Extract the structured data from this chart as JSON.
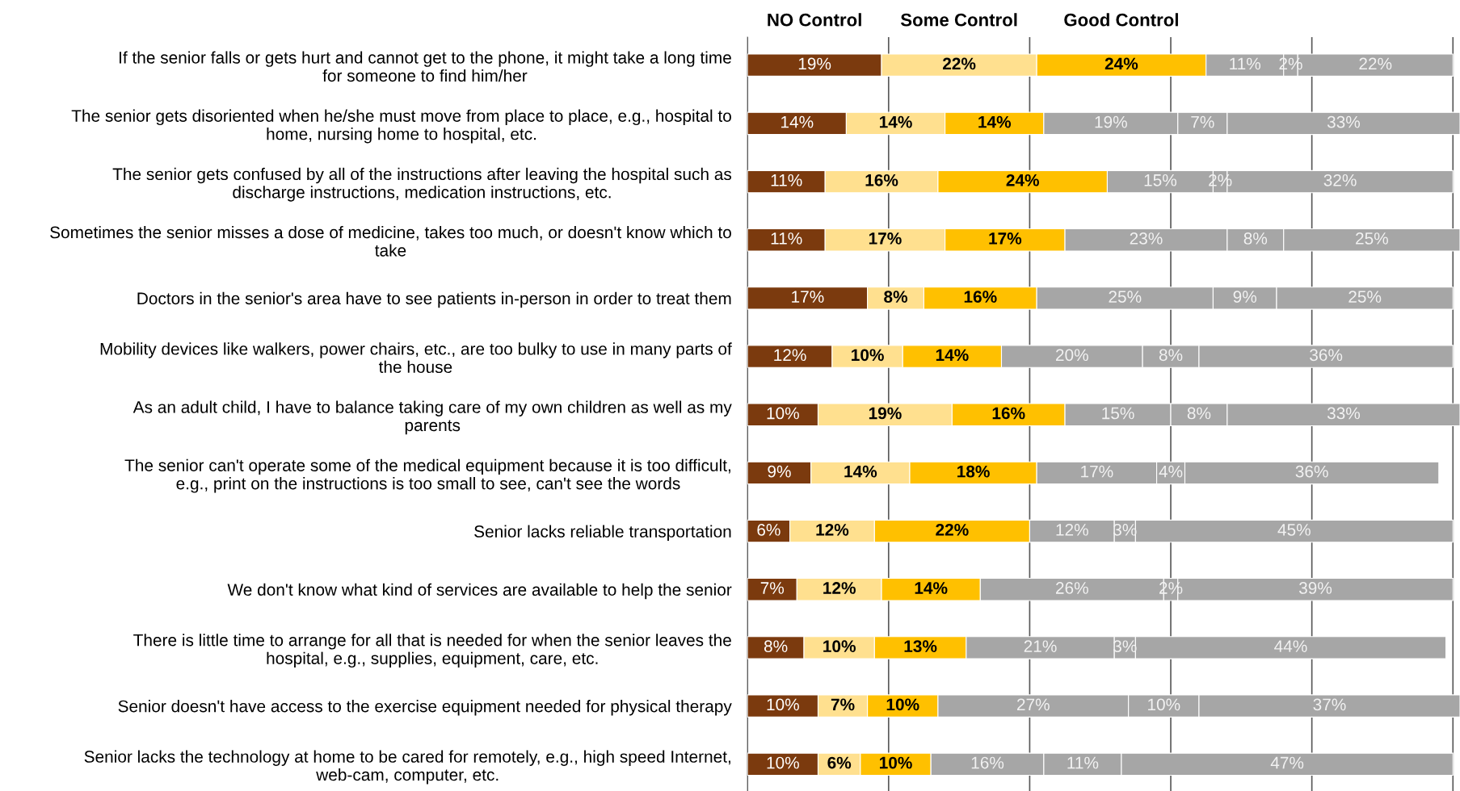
{
  "chart_data": {
    "type": "bar",
    "orientation": "horizontal",
    "stacked": true,
    "grid": "x",
    "tick_labels": "y",
    "categories": [
      "If the senior falls or gets hurt and cannot get to the phone, it might take a long time for someone to find him/her",
      "The senior gets disoriented when he/she must move from place to place, e.g., hospital to home, nursing home to hospital, etc.",
      "The senior gets confused by all of the instructions after leaving the hospital such as discharge instructions, medication instructions, etc.",
      "Sometimes the senior misses a dose of medicine, takes too much, or doesn't know which to take",
      "Doctors in the senior's area have to see patients in-person in order to treat them",
      "Mobility devices like walkers, power chairs, etc., are too bulky to use in many parts of the house",
      "As an adult child, I have to balance taking care of my own children as well as my parents",
      "The senior can't operate some of the medical equipment because it is too difficult, e.g., print on the instructions is too small to see, can't see the words",
      "Senior lacks reliable transportation",
      "We don't know what kind of services are available to help the senior",
      "There is little time to arrange for all that is needed for when the senior leaves the hospital, e.g., supplies, equipment, care, etc.",
      "Senior doesn't have access to the exercise equipment needed for physical therapy",
      "Senior lacks the technology at home to be cared for remotely, e.g., high speed Internet, web-cam, computer, etc."
    ],
    "series": [
      {
        "name": "NO Control",
        "color": "#7b3a0e",
        "values": [
          19,
          14,
          11,
          11,
          17,
          12,
          10,
          9,
          6,
          7,
          8,
          10,
          10
        ],
        "value_labels": [
          "19%",
          "14%",
          "11%",
          "11%",
          "17%",
          "12%",
          "10%",
          "9%",
          "6%",
          "7%",
          "8%",
          "10%",
          "10%"
        ]
      },
      {
        "name": "Some Control",
        "color": "#ffe08f",
        "values": [
          22,
          14,
          16,
          17,
          8,
          10,
          19,
          14,
          12,
          12,
          10,
          7,
          6
        ],
        "value_labels": [
          "22%",
          "14%",
          "16%",
          "17%",
          "8%",
          "10%",
          "19%",
          "14%",
          "12%",
          "12%",
          "10%",
          "7%",
          "6%"
        ]
      },
      {
        "name": "Good Control",
        "color": "#ffc000",
        "values": [
          24,
          14,
          24,
          17,
          16,
          14,
          16,
          18,
          22,
          14,
          13,
          10,
          10
        ],
        "value_labels": [
          "24%",
          "14%",
          "24%",
          "17%",
          "16%",
          "14%",
          "16%",
          "18%",
          "22%",
          "14%",
          "13%",
          "10%",
          "10%"
        ]
      },
      {
        "color": "#a6a6a6",
        "values": [
          11,
          19,
          15,
          23,
          25,
          20,
          15,
          17,
          12,
          26,
          21,
          27,
          16
        ],
        "value_labels": [
          "11%",
          "19%",
          "15%",
          "23%",
          "25%",
          "20%",
          "15%",
          "17%",
          "12%",
          "26%",
          "21%",
          "27%",
          "16%"
        ]
      },
      {
        "color": "#a6a6a6",
        "values": [
          2,
          7,
          2,
          8,
          9,
          8,
          8,
          4,
          3,
          2,
          3,
          10,
          11
        ],
        "value_labels": [
          "2%",
          "7%",
          "2%",
          "8%",
          "9%",
          "8%",
          "8%",
          "4%",
          "3%",
          "2%",
          "3%",
          "10%",
          "11%"
        ]
      },
      {
        "color": "#a6a6a6",
        "values": [
          22,
          33,
          32,
          25,
          25,
          36,
          33,
          36,
          45,
          39,
          44,
          37,
          47
        ],
        "value_labels": [
          "22%",
          "33%",
          "32%",
          "25%",
          "25%",
          "36%",
          "33%",
          "36%",
          "45%",
          "39%",
          "44%",
          "37%",
          "47%"
        ]
      }
    ]
  }
}
